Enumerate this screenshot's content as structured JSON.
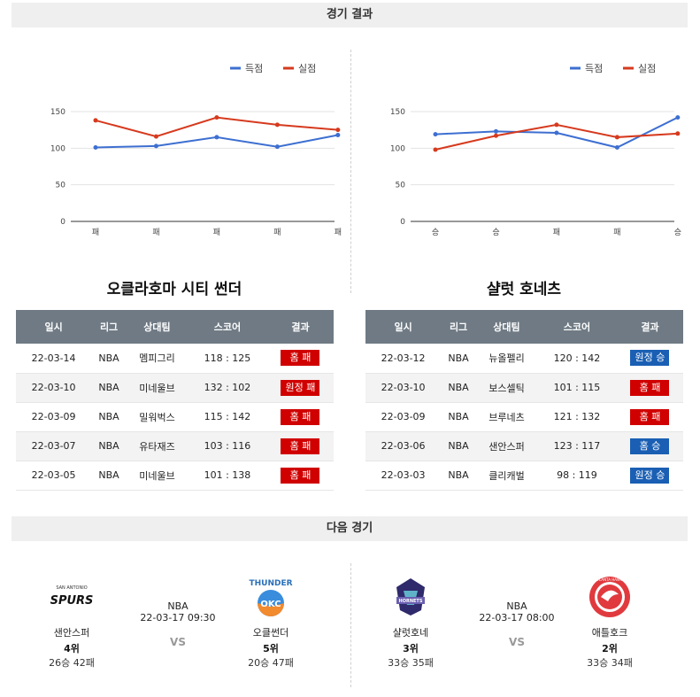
{
  "headers": {
    "results": "경기 결과",
    "next": "다음 경기"
  },
  "legend": {
    "scored": "득점",
    "allowed": "실점"
  },
  "colors": {
    "scored": "#3d6fd1",
    "allowed": "#d63a1e",
    "win_badge": "#1a5fb4",
    "loss_badge": "#d00000"
  },
  "chart_data": [
    {
      "type": "line",
      "categories": [
        "패",
        "패",
        "패",
        "패",
        "패"
      ],
      "series": [
        {
          "name": "득점",
          "values": [
            101,
            103,
            115,
            102,
            118
          ]
        },
        {
          "name": "실점",
          "values": [
            138,
            116,
            142,
            132,
            125
          ]
        }
      ],
      "yticks": [
        "0",
        "50",
        "100",
        "150"
      ],
      "ylim": [
        0,
        150
      ],
      "legend_position": "top-right"
    },
    {
      "type": "line",
      "categories": [
        "승",
        "승",
        "패",
        "패",
        "승"
      ],
      "series": [
        {
          "name": "득점",
          "values": [
            119,
            123,
            121,
            101,
            142
          ]
        },
        {
          "name": "실점",
          "values": [
            98,
            117,
            132,
            115,
            120
          ]
        }
      ],
      "yticks": [
        "0",
        "50",
        "100",
        "150"
      ],
      "ylim": [
        0,
        150
      ],
      "legend_position": "top-right"
    }
  ],
  "teams": [
    {
      "title": "오클라호마 시티 썬더",
      "columns": [
        "일시",
        "리그",
        "상대팀",
        "스코어",
        "결과"
      ],
      "rows": [
        {
          "date": "22-03-14",
          "league": "NBA",
          "opponent": "멤피그리",
          "score": "118 : 125",
          "result": "홈 패",
          "win": false
        },
        {
          "date": "22-03-10",
          "league": "NBA",
          "opponent": "미네울브",
          "score": "132 : 102",
          "result": "원정 패",
          "win": false
        },
        {
          "date": "22-03-09",
          "league": "NBA",
          "opponent": "밀워벅스",
          "score": "115 : 142",
          "result": "홈 패",
          "win": false
        },
        {
          "date": "22-03-07",
          "league": "NBA",
          "opponent": "유타재즈",
          "score": "103 : 116",
          "result": "홈 패",
          "win": false
        },
        {
          "date": "22-03-05",
          "league": "NBA",
          "opponent": "미네울브",
          "score": "101 : 138",
          "result": "홈 패",
          "win": false
        }
      ]
    },
    {
      "title": "샬럿 호네츠",
      "columns": [
        "일시",
        "리그",
        "상대팀",
        "스코어",
        "결과"
      ],
      "rows": [
        {
          "date": "22-03-12",
          "league": "NBA",
          "opponent": "뉴올펠리",
          "score": "120 : 142",
          "result": "원정 승",
          "win": true
        },
        {
          "date": "22-03-10",
          "league": "NBA",
          "opponent": "보스셀틱",
          "score": "101 : 115",
          "result": "홈 패",
          "win": false
        },
        {
          "date": "22-03-09",
          "league": "NBA",
          "opponent": "브루네츠",
          "score": "121 : 132",
          "result": "홈 패",
          "win": false
        },
        {
          "date": "22-03-06",
          "league": "NBA",
          "opponent": "샌안스퍼",
          "score": "123 : 117",
          "result": "홈 승",
          "win": true
        },
        {
          "date": "22-03-03",
          "league": "NBA",
          "opponent": "클리캐벌",
          "score": "98 : 119",
          "result": "원정 승",
          "win": true
        }
      ]
    }
  ],
  "next_games": [
    {
      "league": "NBA",
      "datetime": "22-03-17 09:30",
      "vs": "VS",
      "home": {
        "name": "샌안스퍼",
        "rank": "4위",
        "record": "26승 42패",
        "logo_text": "SAN ANTONIO",
        "logo_main": "SPURS"
      },
      "away": {
        "name": "오클썬더",
        "rank": "5위",
        "record": "20승 47패",
        "logo_text": "THUNDER",
        "logo_main": "OKC"
      }
    },
    {
      "league": "NBA",
      "datetime": "22-03-17 08:00",
      "vs": "VS",
      "home": {
        "name": "샬럿호네",
        "rank": "3위",
        "record": "33승 35패",
        "logo_text": "HORNETS",
        "logo_main": ""
      },
      "away": {
        "name": "애틀호크",
        "rank": "2위",
        "record": "33승 34패",
        "logo_text": "ATLANTA HAWKS",
        "logo_main": ""
      }
    }
  ]
}
